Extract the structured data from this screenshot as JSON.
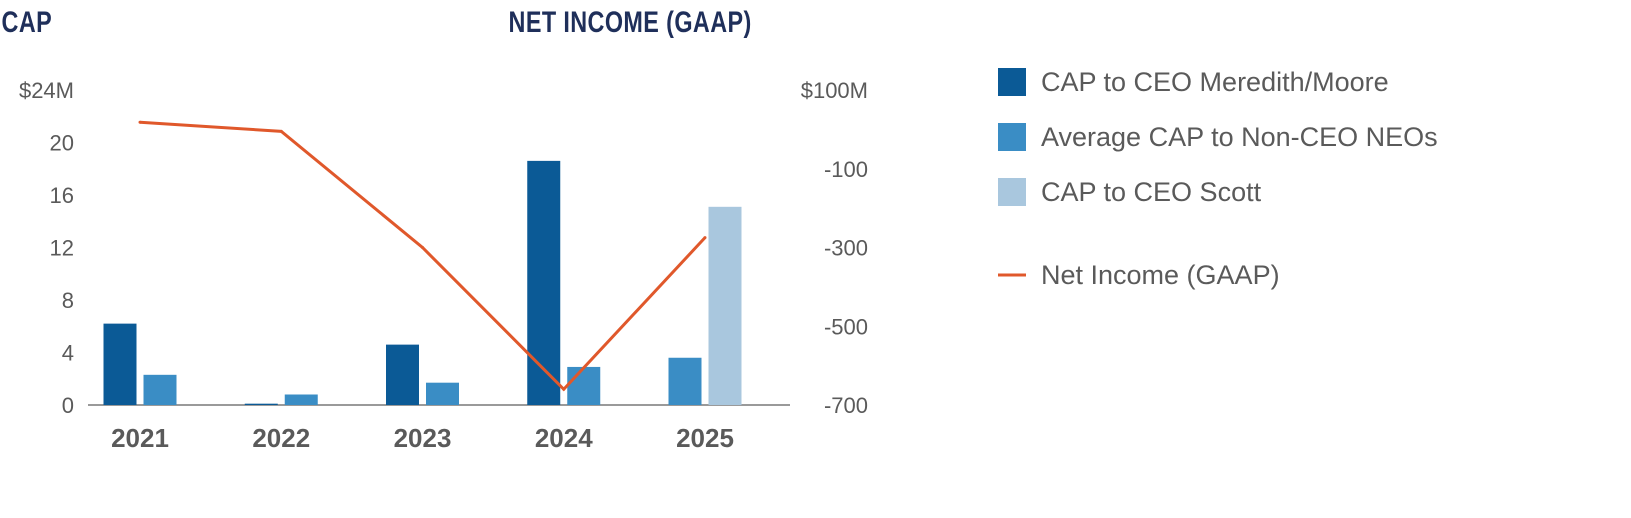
{
  "chart_data": {
    "type": "bar",
    "left_title": "CAP",
    "right_title": "NET INCOME (GAAP)",
    "categories": [
      "2021",
      "2022",
      "2023",
      "2024",
      "2025"
    ],
    "y_left": {
      "ticks": [
        0,
        4,
        8,
        12,
        16,
        20,
        24
      ],
      "tick_labels": [
        "0",
        "4",
        "8",
        "12",
        "16",
        "20",
        "$24M"
      ],
      "ylim": [
        0,
        24
      ]
    },
    "y_right": {
      "ticks": [
        -700,
        -500,
        -300,
        -100,
        100
      ],
      "tick_labels": [
        "-700",
        "-500",
        "-300",
        "-100",
        "$100M"
      ],
      "ylim": [
        -700,
        100
      ]
    },
    "series": [
      {
        "name": "CAP to CEO Meredith/Moore",
        "axis": "left",
        "color": "#0b5a96",
        "values": [
          6.2,
          0.1,
          4.6,
          18.6,
          null
        ]
      },
      {
        "name": "Average CAP to Non-CEO NEOs",
        "axis": "left",
        "color": "#3a8dc5",
        "values": [
          2.3,
          0.8,
          1.7,
          2.9,
          3.6
        ]
      },
      {
        "name": "CAP to CEO Scott",
        "axis": "left",
        "color": "#a9c7de",
        "values": [
          null,
          null,
          null,
          null,
          15.1
        ]
      },
      {
        "name": "Net Income (GAAP)",
        "axis": "right",
        "type": "line",
        "color": "#e0582b",
        "values": [
          18,
          -5,
          -300,
          -660,
          -275
        ]
      }
    ],
    "colors": {
      "heading": "#1f2f5a",
      "text": "#5a5a5a",
      "axis": "#9a9a9a"
    },
    "legend_position": "right"
  }
}
